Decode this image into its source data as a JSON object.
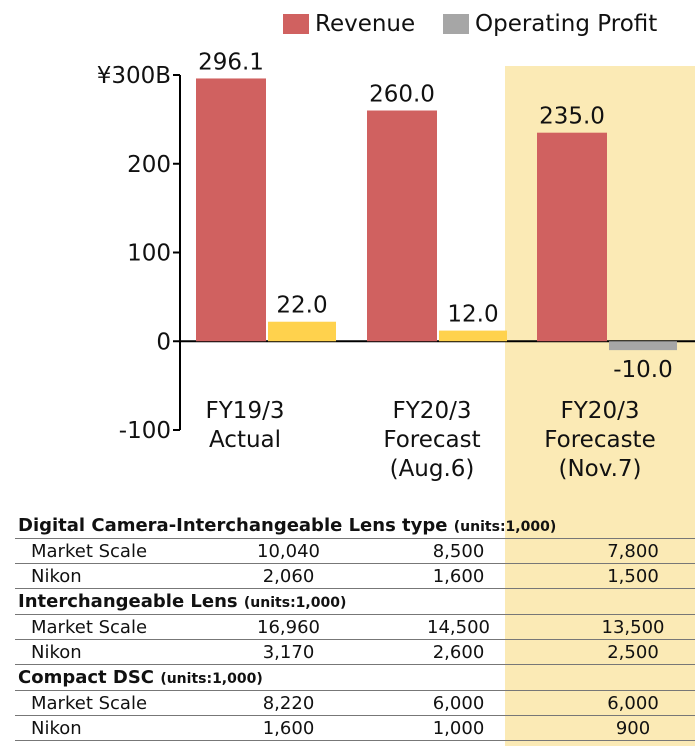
{
  "legend": [
    {
      "name": "Revenue",
      "color": "#d06160"
    },
    {
      "name": "Operating Profit",
      "color": "#a6a6a6"
    }
  ],
  "chart_data": {
    "type": "bar",
    "categories": [
      "FY19/3 Actual",
      "FY20/3 Forecast (Aug.6)",
      "FY20/3 Forecaste (Nov.7)"
    ],
    "category_lines": [
      [
        "FY19/3",
        "Actual"
      ],
      [
        "FY20/3",
        "Forecast",
        "(Aug.6)"
      ],
      [
        "FY20/3",
        "Forecaste",
        "(Nov.7)"
      ]
    ],
    "series": [
      {
        "name": "Revenue",
        "values": [
          296.1,
          260.0,
          235.0
        ],
        "labels": [
          "296.1",
          "260.0",
          "235.0"
        ],
        "color": "#d06160"
      },
      {
        "name": "Operating Profit",
        "values": [
          22.0,
          12.0,
          -10.0
        ],
        "labels": [
          "22.0",
          "12.0",
          "-10.0"
        ],
        "colors": [
          "#ffd24d",
          "#ffd24d",
          "#a6a6a6"
        ]
      }
    ],
    "yticks": [
      300,
      200,
      100,
      0,
      -100
    ],
    "ytick_labels": [
      "¥300B",
      "200",
      "100",
      "0",
      "-100"
    ],
    "ylim": [
      -100,
      300
    ],
    "highlight": "FY20/3 Forecaste (Nov.7)",
    "highlight_color": "#fbeab5"
  },
  "tables": [
    {
      "title": "Digital Camera-Interchangeable Lens type",
      "units": "(units:1,000)",
      "rows": [
        {
          "label": "Market Scale",
          "values": [
            "10,040",
            "8,500",
            "7,800"
          ]
        },
        {
          "label": "Nikon",
          "values": [
            "2,060",
            "1,600",
            "1,500"
          ]
        }
      ]
    },
    {
      "title": "Interchangeable Lens",
      "units": "(units:1,000)",
      "rows": [
        {
          "label": "Market Scale",
          "values": [
            "16,960",
            "14,500",
            "13,500"
          ]
        },
        {
          "label": "Nikon",
          "values": [
            "3,170",
            "2,600",
            "2,500"
          ]
        }
      ]
    },
    {
      "title": "Compact DSC",
      "units": "(units:1,000)",
      "rows": [
        {
          "label": "Market Scale",
          "values": [
            "8,220",
            "6,000",
            "6,000"
          ]
        },
        {
          "label": "Nikon",
          "values": [
            "1,600",
            "1,000",
            "900"
          ]
        }
      ]
    }
  ]
}
